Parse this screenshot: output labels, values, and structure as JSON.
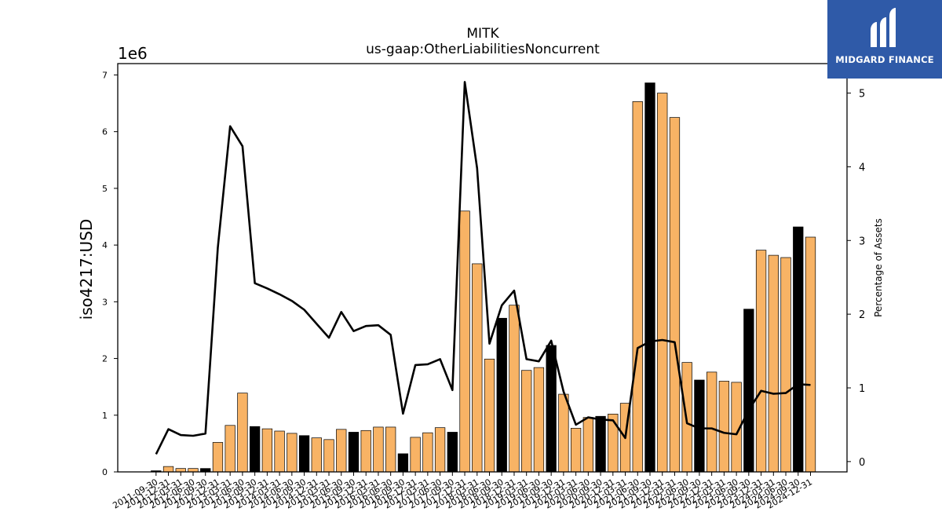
{
  "chart_data": {
    "type": "bar",
    "title": "MITK",
    "subtitle": "us-gaap:OtherLiabilitiesNoncurrent",
    "ylabel": "iso4217:USD",
    "y_scale_label": "1e6",
    "y2label": "Percentage of Assets",
    "ylim": [
      0,
      7200000
    ],
    "y2lim": [
      -0.14,
      5.4
    ],
    "yticks": [
      "0",
      "1",
      "2",
      "3",
      "4",
      "5",
      "6",
      "7"
    ],
    "y2ticks": [
      "0",
      "1",
      "2",
      "3",
      "4",
      "5"
    ],
    "grid": false,
    "colors": {
      "fy_bar": "#000000",
      "q_bar": "#f8b365",
      "line": "#000000"
    },
    "categories": [
      "2011-09-30",
      "2011-12-31",
      "2012-03-31",
      "2012-06-30",
      "2012-09-30",
      "2012-12-31",
      "2013-03-31",
      "2013-06-30",
      "2013-09-30",
      "2013-12-31",
      "2014-03-31",
      "2014-06-30",
      "2014-09-30",
      "2014-12-31",
      "2015-03-31",
      "2015-06-30",
      "2015-09-30",
      "2015-12-31",
      "2016-03-31",
      "2016-06-30",
      "2016-09-30",
      "2016-12-31",
      "2017-03-31",
      "2017-06-30",
      "2017-09-30",
      "2017-12-31",
      "2018-03-31",
      "2018-06-30",
      "2018-09-30",
      "2018-12-31",
      "2019-03-31",
      "2019-06-30",
      "2019-09-30",
      "2019-12-31",
      "2020-03-31",
      "2020-06-30",
      "2020-09-30",
      "2020-12-31",
      "2021-03-31",
      "2021-06-30",
      "2021-09-30",
      "2021-12-31",
      "2022-03-31",
      "2022-06-30",
      "2022-09-30",
      "2022-12-31",
      "2023-03-31",
      "2023-06-30",
      "2023-09-30",
      "2023-12-31",
      "2024-03-31",
      "2024-06-30",
      "2024-09-30",
      "2024-12-31"
    ],
    "series": [
      {
        "kind": "bar",
        "values": [
          20000,
          95000,
          60000,
          60000,
          60000,
          520000,
          820000,
          1390000,
          800000,
          760000,
          720000,
          680000,
          640000,
          600000,
          570000,
          750000,
          700000,
          730000,
          790000,
          790000,
          320000,
          610000,
          690000,
          780000,
          700000,
          4600000,
          3670000,
          1990000,
          2710000,
          2940000,
          1790000,
          1840000,
          2230000,
          1370000,
          770000,
          960000,
          980000,
          1020000,
          1210000,
          6530000,
          6860000,
          6680000,
          6250000,
          1930000,
          1620000,
          1760000,
          1600000,
          1580000,
          2870000,
          3910000,
          3820000,
          3780000,
          4320000,
          4140000
        ],
        "fiscal_year_end": [
          true,
          false,
          false,
          false,
          true,
          false,
          false,
          false,
          true,
          false,
          false,
          false,
          true,
          false,
          false,
          false,
          true,
          false,
          false,
          false,
          true,
          false,
          false,
          false,
          true,
          false,
          false,
          false,
          true,
          false,
          false,
          false,
          true,
          false,
          false,
          false,
          true,
          false,
          false,
          false,
          true,
          false,
          false,
          false,
          true,
          false,
          false,
          false,
          true,
          false,
          false,
          false,
          true,
          false
        ]
      },
      {
        "kind": "line",
        "axis": "right",
        "values": [
          0.1,
          0.44,
          0.36,
          0.35,
          0.38,
          2.9,
          4.55,
          4.28,
          2.42,
          2.35,
          2.27,
          2.18,
          2.06,
          1.87,
          1.68,
          2.03,
          1.77,
          1.84,
          1.85,
          1.72,
          0.65,
          1.31,
          1.32,
          1.39,
          0.97,
          5.15,
          3.98,
          1.6,
          2.12,
          2.32,
          1.39,
          1.36,
          1.64,
          0.95,
          0.5,
          0.6,
          0.57,
          0.56,
          0.32,
          1.54,
          1.63,
          1.65,
          1.62,
          0.52,
          0.45,
          0.45,
          0.39,
          0.37,
          0.7,
          0.96,
          0.92,
          0.93,
          1.05,
          1.04
        ]
      }
    ]
  },
  "logo": {
    "text": "MIDGARD FINANCE"
  }
}
